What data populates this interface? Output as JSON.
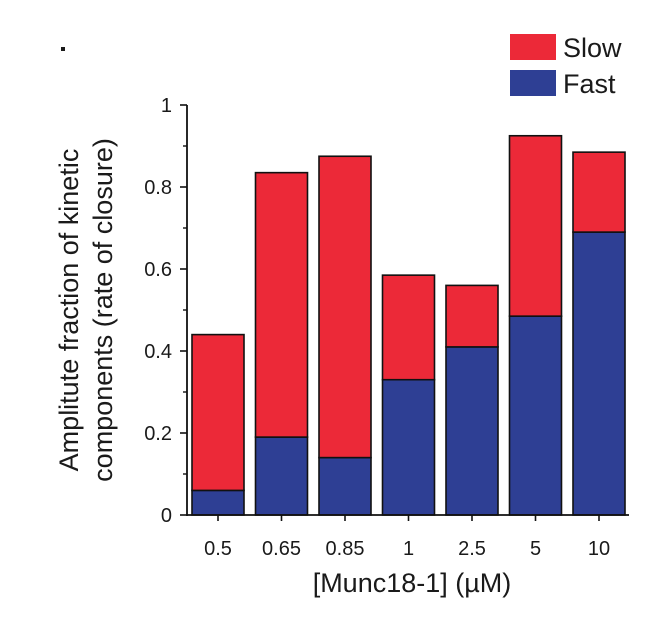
{
  "chart_data": {
    "type": "bar",
    "stacked": true,
    "categories": [
      "0.5",
      "0.65",
      "0.85",
      "1",
      "2.5",
      "5",
      "10"
    ],
    "series": [
      {
        "name": "Fast",
        "color": "#2e3f94",
        "values": [
          0.06,
          0.19,
          0.14,
          0.33,
          0.41,
          0.485,
          0.69
        ]
      },
      {
        "name": "Slow",
        "color": "#ec2938",
        "values": [
          0.38,
          0.645,
          0.735,
          0.255,
          0.15,
          0.44,
          0.195
        ]
      }
    ],
    "title": "",
    "xlabel": "[Munc18-1] (µM)",
    "ylabel": "Amplitute fraction of kinetic components (rate of closure)",
    "ylabel_lines": [
      "Amplitute fraction of kinetic",
      "components (rate of closure)"
    ],
    "ylim": [
      0,
      1
    ],
    "yticks": [
      "0",
      "0.2",
      "0.4",
      "0.6",
      "0.8",
      "1"
    ],
    "grid": false,
    "legend_position": "top-right",
    "legend_order": [
      "Slow",
      "Fast"
    ]
  }
}
